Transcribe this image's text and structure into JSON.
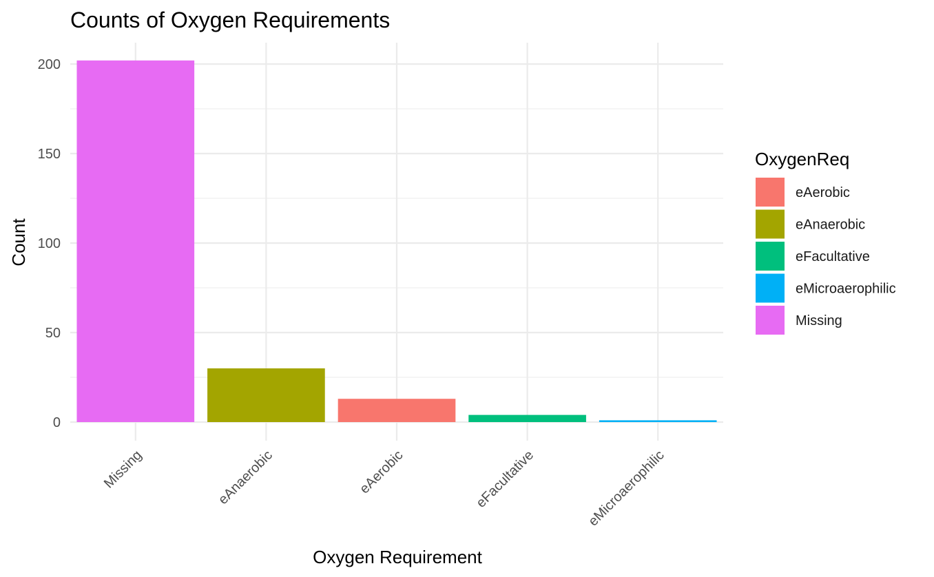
{
  "chart_data": {
    "type": "bar",
    "title": "Counts of Oxygen Requirements",
    "xlabel": "Oxygen Requirement",
    "ylabel": "Count",
    "categories": [
      "Missing",
      "eAnaerobic",
      "eAerobic",
      "eFacultative",
      "eMicroaerophilic"
    ],
    "values": [
      202,
      30,
      13,
      4,
      1
    ],
    "ylim": [
      0,
      210
    ],
    "yticks": [
      0,
      50,
      100,
      150,
      200
    ],
    "grid": true,
    "legend": {
      "title": "OxygenReq",
      "placement": "right",
      "items": [
        {
          "label": "eAerobic",
          "color": "#F8766D"
        },
        {
          "label": "eAnaerobic",
          "color": "#A3A500"
        },
        {
          "label": "eFacultative",
          "color": "#00BF7D"
        },
        {
          "label": "eMicroaerophilic",
          "color": "#00B0F6"
        },
        {
          "label": "Missing",
          "color": "#E76BF3"
        }
      ]
    },
    "colors": {
      "Missing": "#E76BF3",
      "eAnaerobic": "#A3A500",
      "eAerobic": "#F8766D",
      "eFacultative": "#00BF7D",
      "eMicroaerophilic": "#00B0F6"
    }
  }
}
